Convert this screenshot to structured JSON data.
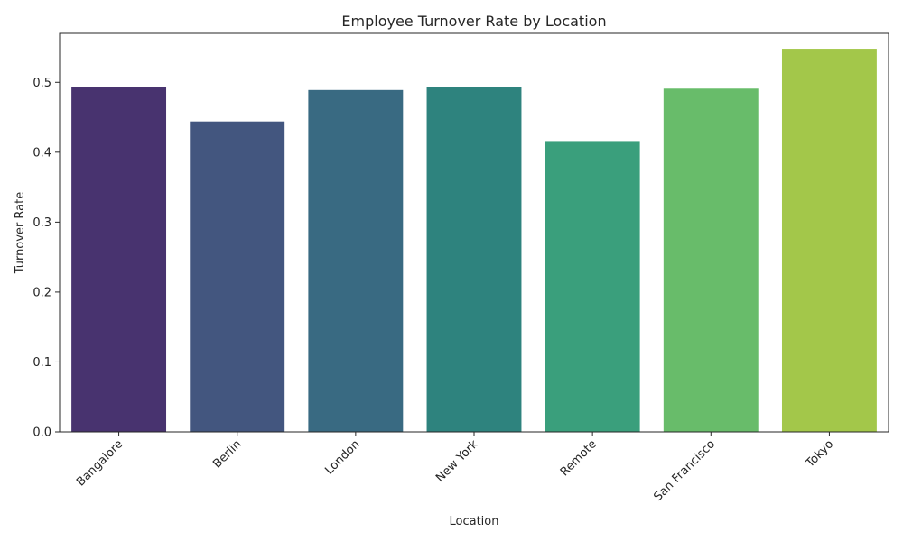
{
  "chart_data": {
    "type": "bar",
    "title": "Employee Turnover Rate by Location",
    "xlabel": "Location",
    "ylabel": "Turnover Rate",
    "categories": [
      "Bangalore",
      "Berlin",
      "London",
      "New York",
      "Remote",
      "San Francisco",
      "Tokyo"
    ],
    "values": [
      0.493,
      0.444,
      0.489,
      0.493,
      0.416,
      0.491,
      0.548
    ],
    "colors": [
      "#48336f",
      "#43567f",
      "#396a82",
      "#2e837e",
      "#3a9f7c",
      "#68bc6a",
      "#a3c74a"
    ],
    "ylim": [
      0,
      0.57
    ],
    "yticks": [
      "0.0",
      "0.1",
      "0.2",
      "0.3",
      "0.4",
      "0.5"
    ],
    "grid": false,
    "legend": "none"
  }
}
